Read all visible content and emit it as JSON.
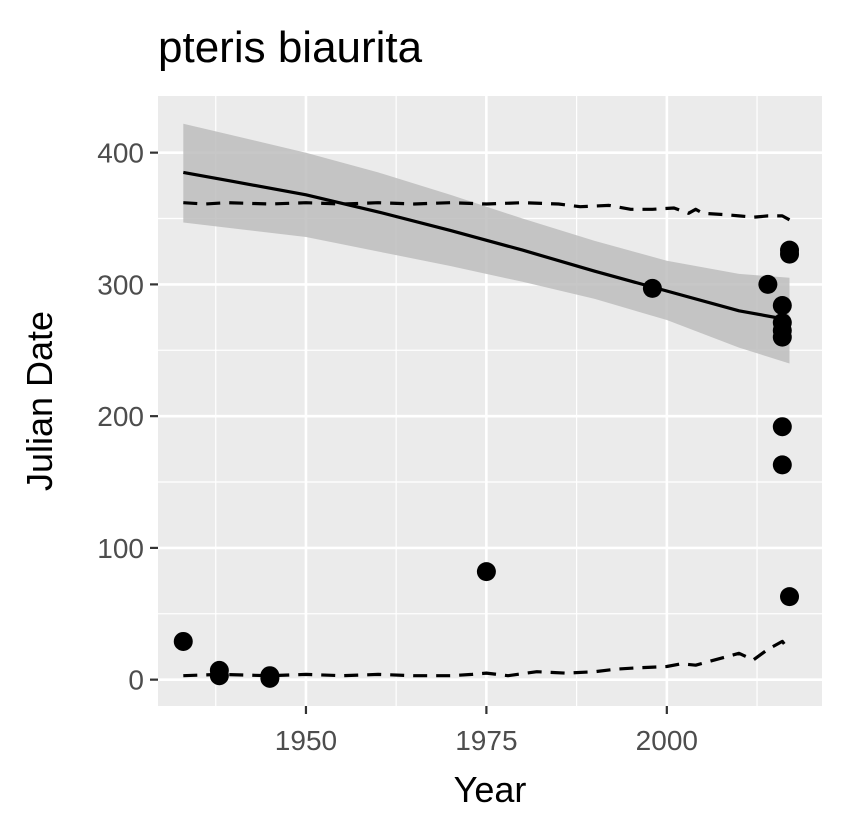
{
  "chart_data": {
    "type": "scatter",
    "title": "pteris biaurita",
    "xlabel": "Year",
    "ylabel": "Julian Date",
    "xlim": [
      1929.5,
      2021.5
    ],
    "ylim": [
      -20,
      443
    ],
    "x_ticks": [
      1950,
      1975,
      2000
    ],
    "y_ticks": [
      0,
      100,
      200,
      300,
      400
    ],
    "grid": true,
    "background": "#ebebeb",
    "points": [
      {
        "x": 1933,
        "y": 29
      },
      {
        "x": 1938,
        "y": 7
      },
      {
        "x": 1938,
        "y": 3
      },
      {
        "x": 1945,
        "y": 3
      },
      {
        "x": 1945,
        "y": 1
      },
      {
        "x": 1975,
        "y": 82
      },
      {
        "x": 1998,
        "y": 297
      },
      {
        "x": 2014,
        "y": 300
      },
      {
        "x": 2016,
        "y": 284
      },
      {
        "x": 2016,
        "y": 271
      },
      {
        "x": 2016,
        "y": 265
      },
      {
        "x": 2016,
        "y": 260
      },
      {
        "x": 2016,
        "y": 192
      },
      {
        "x": 2016,
        "y": 163
      },
      {
        "x": 2017,
        "y": 326
      },
      {
        "x": 2017,
        "y": 323
      },
      {
        "x": 2017,
        "y": 63
      }
    ],
    "trend": {
      "style": "solid",
      "color": "#000000",
      "x": [
        1933,
        1940,
        1950,
        1960,
        1970,
        1980,
        1990,
        2000,
        2010,
        2017
      ],
      "y": [
        385,
        378,
        368,
        355,
        341,
        326,
        310,
        295,
        280,
        273
      ]
    },
    "confidence_band": {
      "color": "#bdbdbd",
      "x": [
        1933,
        1950,
        1960,
        1970,
        1980,
        1990,
        2000,
        2010,
        2017
      ],
      "upper": [
        422,
        400,
        385,
        368,
        350,
        333,
        318,
        308,
        305
      ],
      "lower": [
        347,
        336,
        325,
        314,
        302,
        289,
        273,
        252,
        240
      ]
    },
    "upper_bound": {
      "style": "dashed",
      "color": "#000000",
      "x": [
        1933,
        1936,
        1939,
        1945,
        1950,
        1955,
        1960,
        1965,
        1970,
        1975,
        1980,
        1985,
        1988,
        1992,
        1995,
        1998,
        2001,
        2003,
        2004,
        2005,
        2008,
        2010,
        2012,
        2014,
        2016,
        2017
      ],
      "y": [
        362,
        361,
        362,
        361,
        362,
        361,
        362,
        361,
        362,
        361,
        362,
        361,
        359,
        360,
        357,
        357,
        358,
        354,
        357,
        354,
        353,
        352,
        351,
        352,
        352,
        349
      ]
    },
    "lower_bound": {
      "style": "dashed",
      "color": "#000000",
      "x": [
        1933,
        1938,
        1945,
        1950,
        1955,
        1960,
        1965,
        1970,
        1973,
        1975,
        1978,
        1982,
        1986,
        1990,
        1993,
        1996,
        2000,
        2002,
        2004,
        2006,
        2008,
        2010,
        2012,
        2014,
        2016,
        2017
      ],
      "y": [
        3,
        4,
        3,
        4,
        3,
        4,
        3,
        3,
        4,
        5,
        3,
        6,
        5,
        6,
        8,
        9,
        10,
        12,
        11,
        14,
        17,
        20,
        15,
        23,
        29,
        22
      ]
    }
  }
}
